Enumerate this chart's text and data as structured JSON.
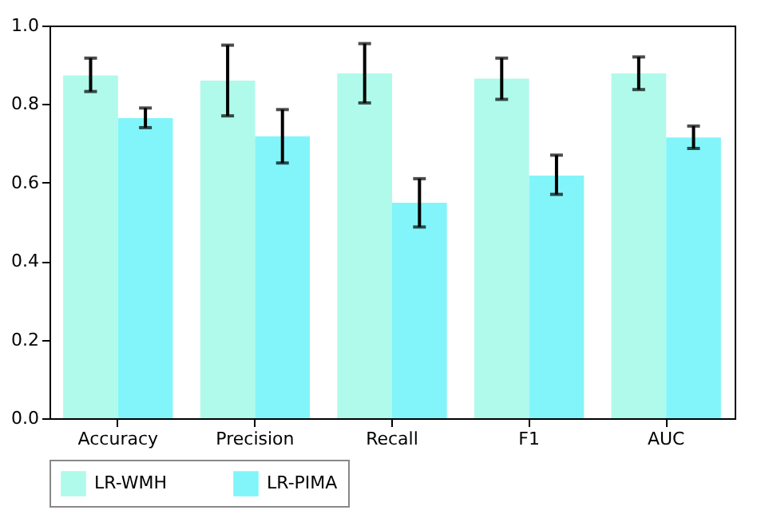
{
  "chart_data": {
    "type": "bar",
    "categories": [
      "Accuracy",
      "Precision",
      "Recall",
      "F1",
      "AUC"
    ],
    "series": [
      {
        "name": "LR-WMH",
        "color": "#affaeb",
        "values": [
          0.873,
          0.86,
          0.878,
          0.865,
          0.878
        ],
        "errors": [
          [
            0.832,
            0.917
          ],
          [
            0.77,
            0.95
          ],
          [
            0.803,
            0.954
          ],
          [
            0.812,
            0.917
          ],
          [
            0.837,
            0.92
          ]
        ]
      },
      {
        "name": "LR-PIMA",
        "color": "#82f5fa",
        "values": [
          0.764,
          0.718,
          0.549,
          0.618,
          0.715
        ],
        "errors": [
          [
            0.74,
            0.79
          ],
          [
            0.65,
            0.786
          ],
          [
            0.487,
            0.61
          ],
          [
            0.57,
            0.67
          ],
          [
            0.687,
            0.744
          ]
        ]
      }
    ],
    "ylim": [
      0,
      1.0
    ],
    "yticks": [
      {
        "value": 0,
        "label": "0.0"
      },
      0.2,
      0.4,
      0.6,
      0.8,
      {
        "value": 1,
        "label": "1.0"
      }
    ],
    "grid": false,
    "legend": "bottom"
  }
}
